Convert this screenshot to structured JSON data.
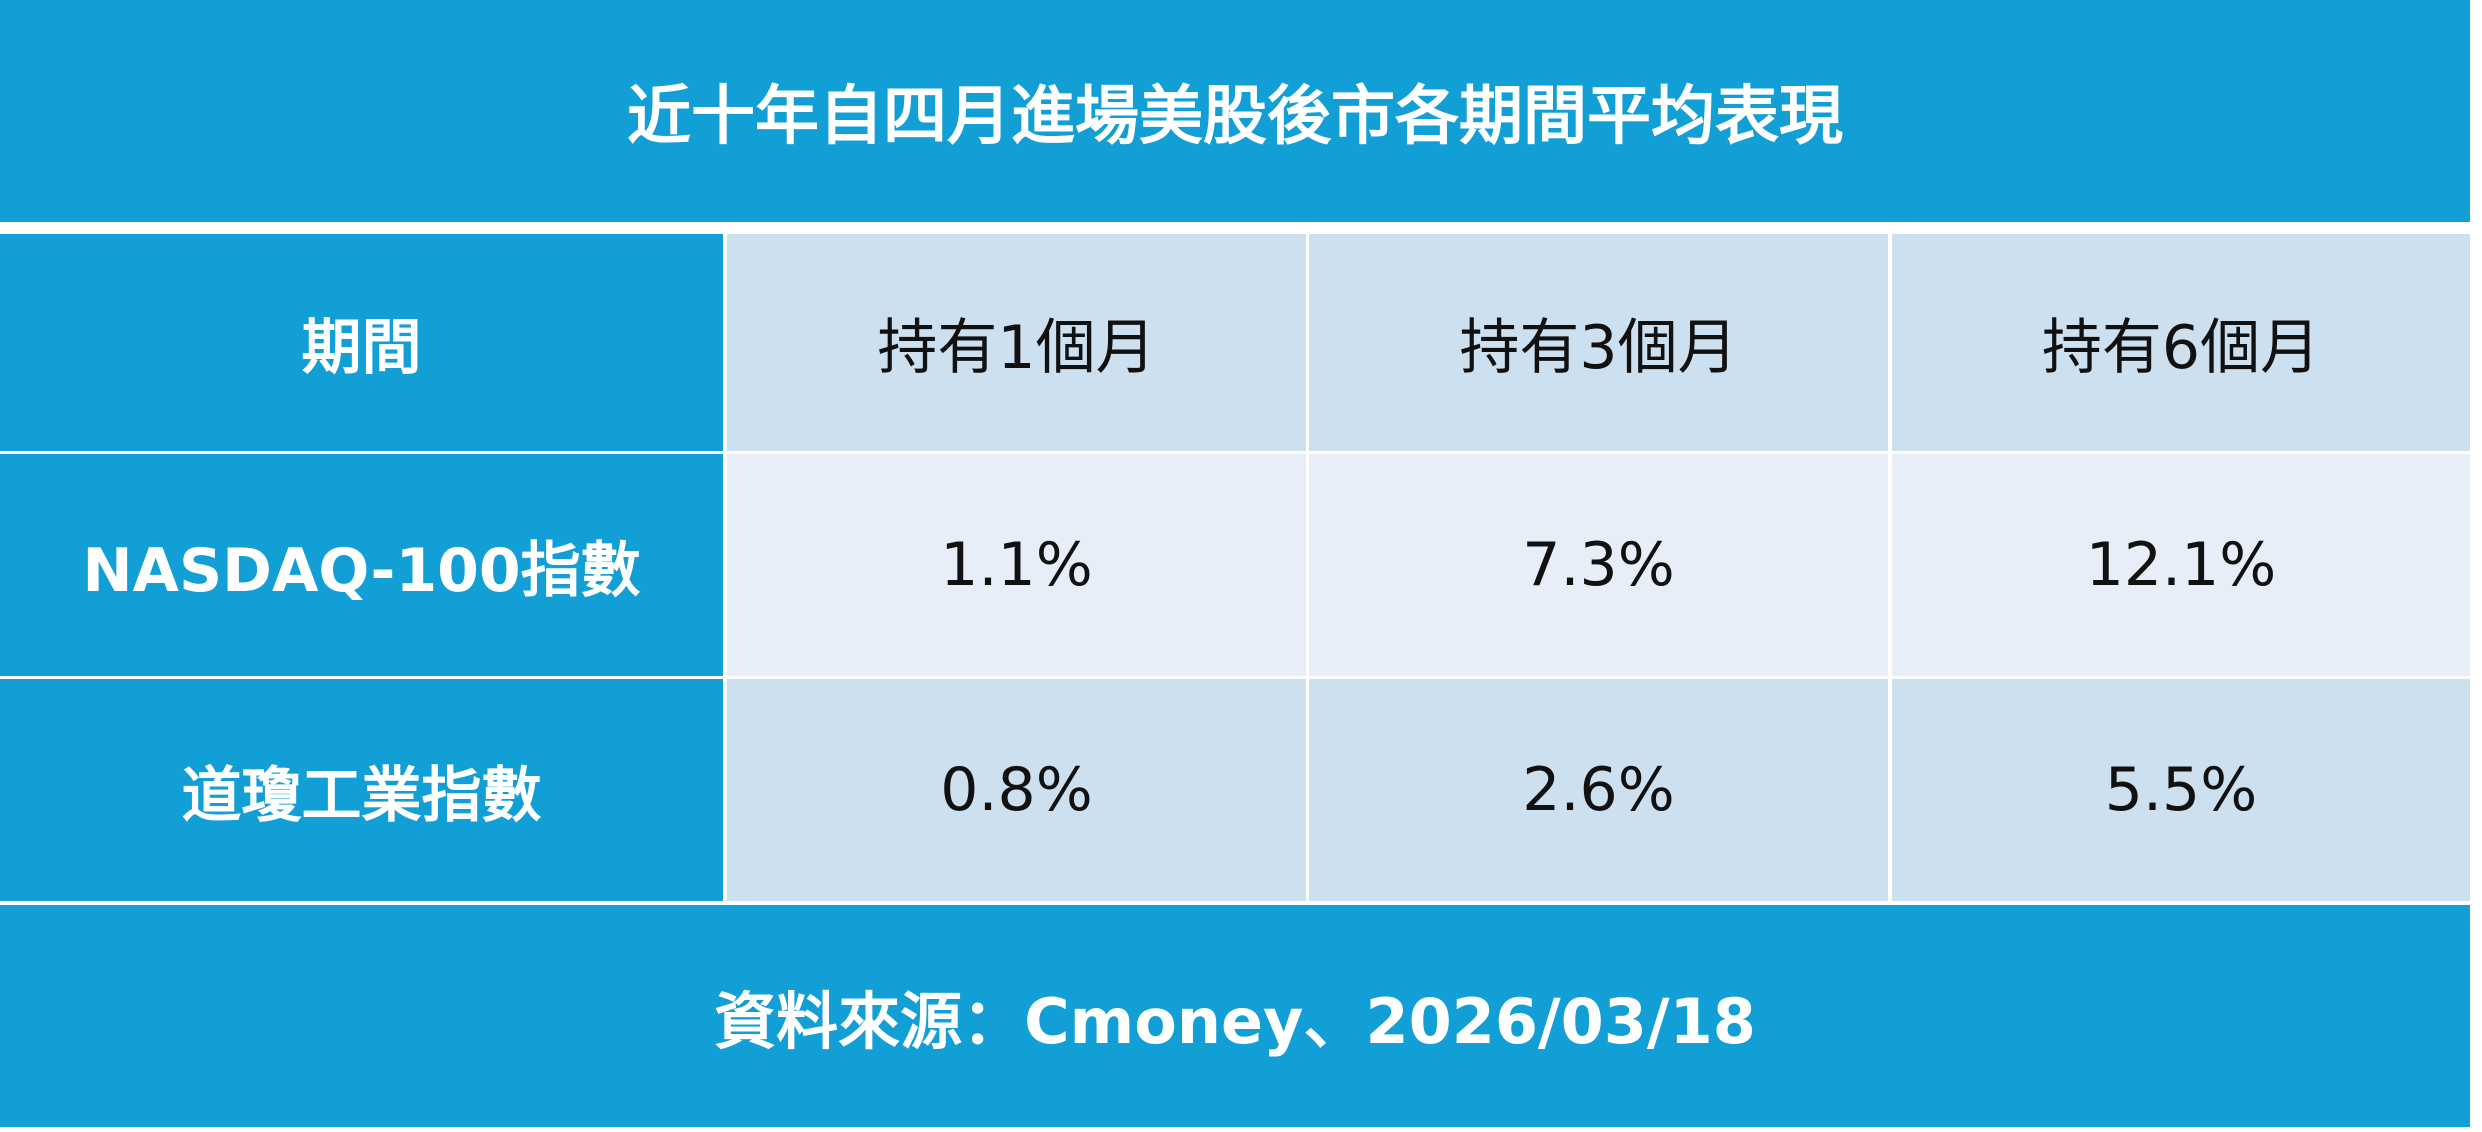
{
  "title": "近十年自四月進場美股後市各期間平均表現",
  "table": {
    "header": [
      "期間",
      "持有1個月",
      "持有3個月",
      "持有6個月"
    ],
    "rows": [
      [
        "NASDAQ-100指數",
        "1.1%",
        "7.3%",
        "12.1%"
      ],
      [
        "道瓊工業指數",
        "0.8%",
        "2.6%",
        "5.5%"
      ]
    ]
  },
  "footer": "資料來源：Cmoney、2026/03/18"
}
